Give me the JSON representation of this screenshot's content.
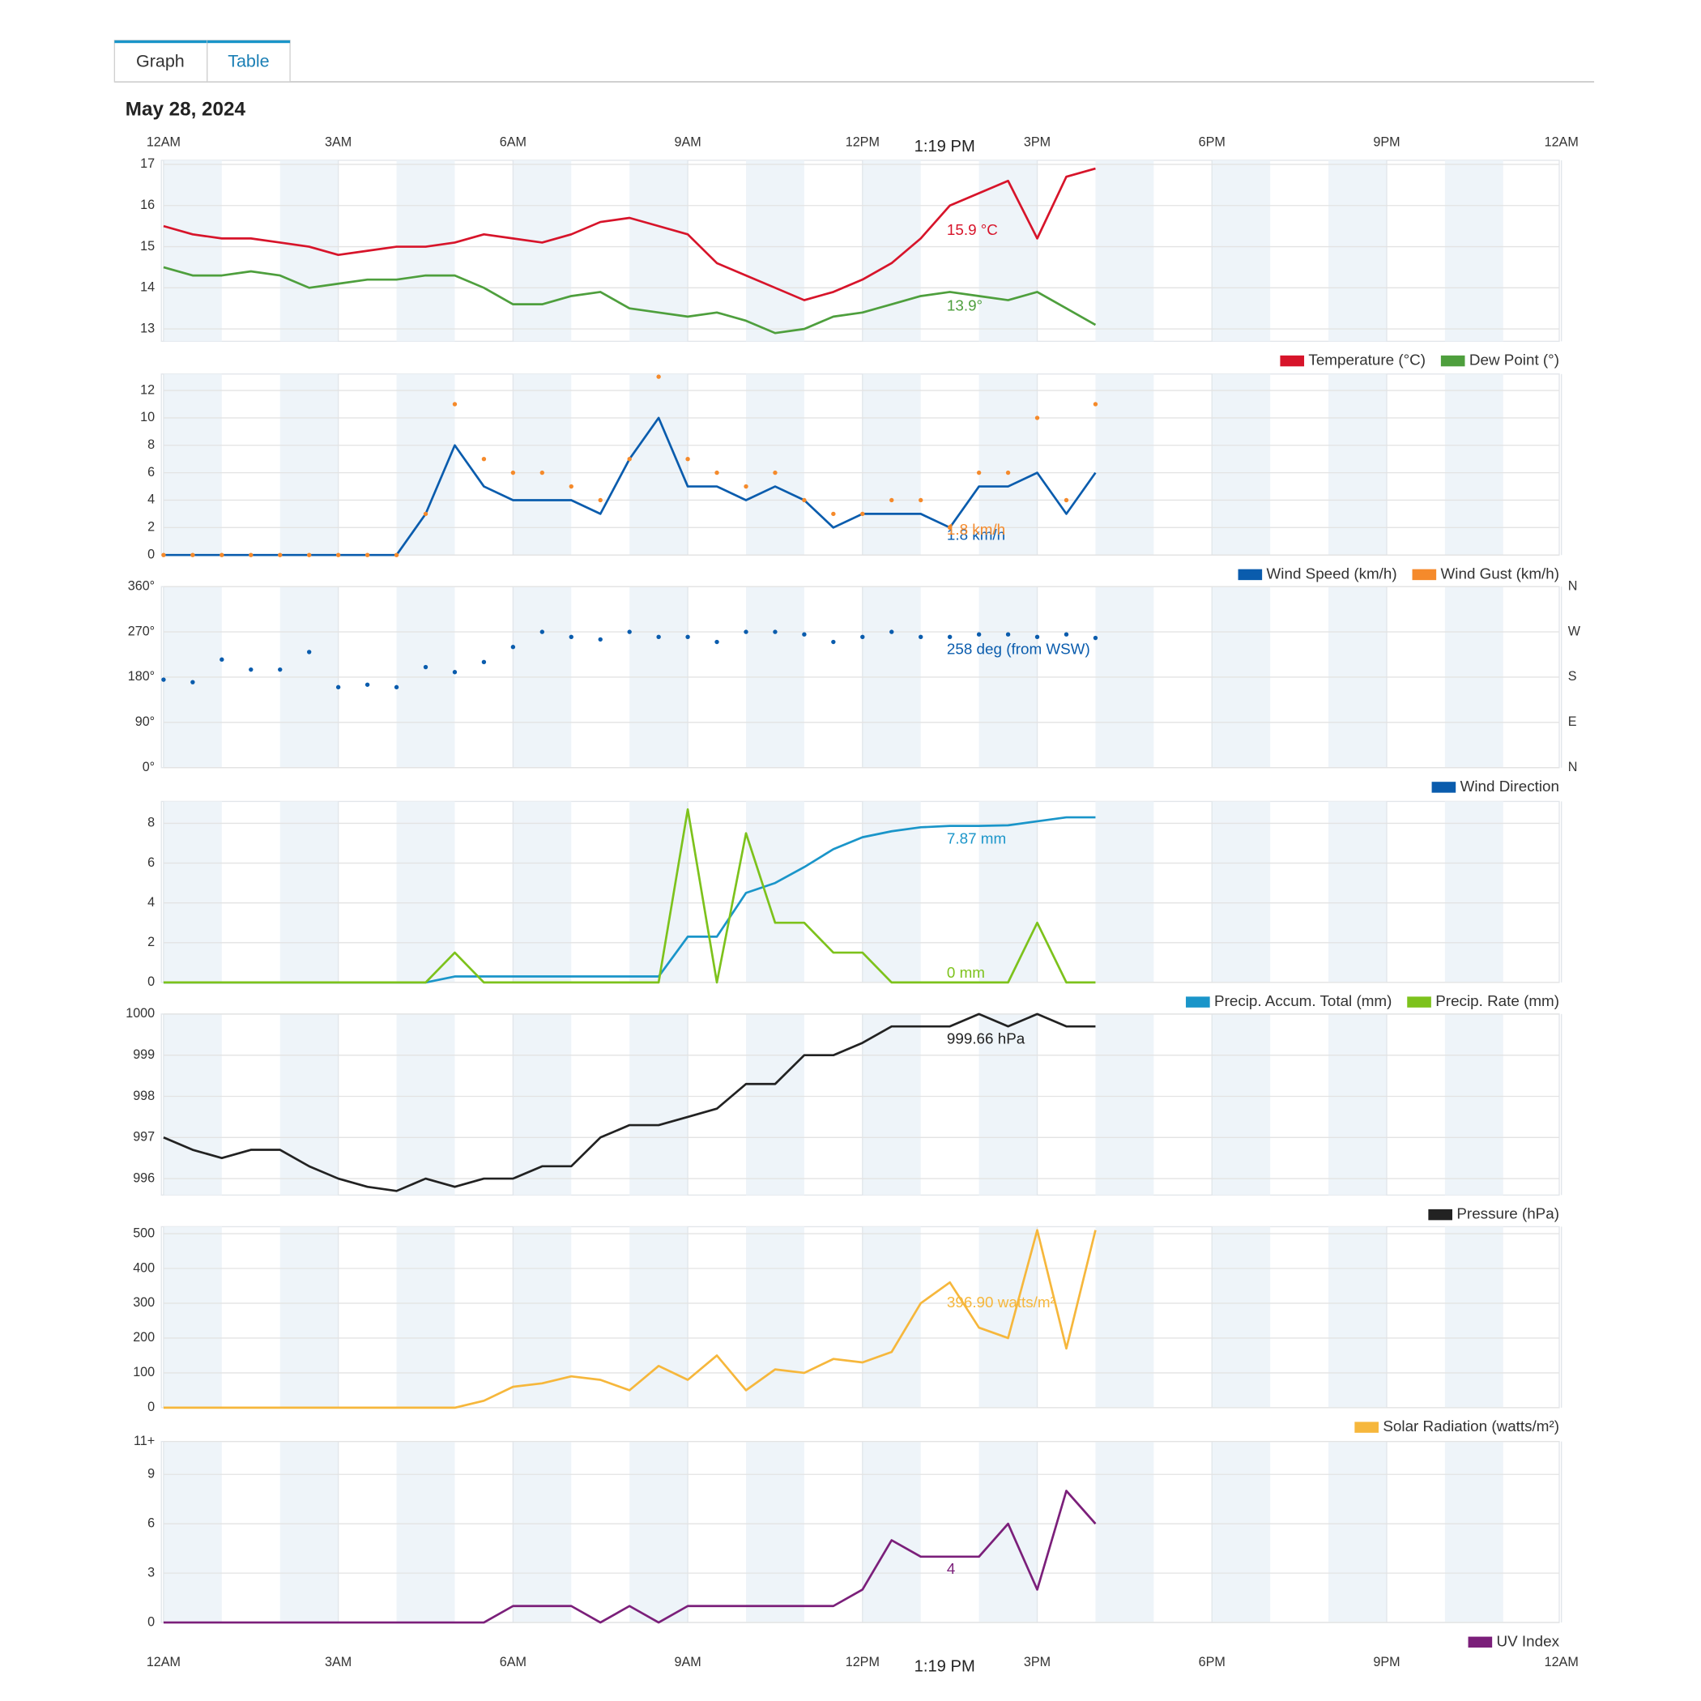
{
  "tabs": [
    "Graph",
    "Table"
  ],
  "date": "May 28, 2024",
  "cursor": {
    "x": 13.3167,
    "label": "1:19 PM"
  },
  "time_axis": {
    "xlim": [
      0,
      24
    ],
    "xticks": [
      {
        "value": 0,
        "label": "12AM"
      },
      {
        "value": 3,
        "label": "3AM"
      },
      {
        "value": 6,
        "label": "6AM"
      },
      {
        "value": 9,
        "label": "9AM"
      },
      {
        "value": 12,
        "label": "12PM"
      },
      {
        "value": 15,
        "label": "3PM"
      },
      {
        "value": 18,
        "label": "6PM"
      },
      {
        "value": 21,
        "label": "9PM"
      },
      {
        "value": 24,
        "label": "12AM"
      }
    ]
  },
  "chart_data": [
    {
      "type": "line",
      "xlim": [
        0,
        24
      ],
      "ylim": [
        12.7,
        17.1
      ],
      "yticks": [
        13,
        14,
        15,
        16,
        17
      ],
      "grid": true,
      "x": [
        0,
        0.5,
        1,
        1.5,
        2,
        2.5,
        3,
        3.5,
        4,
        4.5,
        5,
        5.5,
        6,
        6.5,
        7,
        7.5,
        8,
        8.5,
        9,
        9.5,
        10,
        10.5,
        11,
        11.5,
        12,
        12.5,
        13,
        13.5,
        14,
        14.5,
        15,
        15.5,
        16
      ],
      "series": [
        {
          "name": "Temperature (°C)",
          "color": "#d7142a",
          "hover_label": "15.9 °C",
          "values": [
            15.5,
            15.3,
            15.2,
            15.2,
            15.1,
            15.0,
            14.8,
            14.9,
            15.0,
            15.0,
            15.1,
            15.3,
            15.2,
            15.1,
            15.3,
            15.6,
            15.7,
            15.5,
            15.3,
            14.6,
            14.3,
            14.0,
            13.7,
            13.9,
            14.2,
            14.6,
            15.2,
            16.0,
            16.3,
            16.6,
            15.2,
            16.7,
            16.9
          ]
        },
        {
          "name": "Dew Point (°)",
          "color": "#4e9f3d",
          "hover_label": "13.9°",
          "values": [
            14.5,
            14.3,
            14.3,
            14.4,
            14.3,
            14.0,
            14.1,
            14.2,
            14.2,
            14.3,
            14.3,
            14.0,
            13.6,
            13.6,
            13.8,
            13.9,
            13.5,
            13.4,
            13.3,
            13.4,
            13.2,
            12.9,
            13.0,
            13.3,
            13.4,
            13.6,
            13.8,
            13.9,
            13.8,
            13.7,
            13.9,
            13.5,
            13.1
          ]
        }
      ]
    },
    {
      "type": "line",
      "xlim": [
        0,
        24
      ],
      "ylim": [
        0,
        13.2
      ],
      "yticks": [
        0,
        2,
        4,
        6,
        8,
        10,
        12
      ],
      "grid": true,
      "x": [
        0,
        0.5,
        1,
        1.5,
        2,
        2.5,
        3,
        3.5,
        4,
        4.5,
        5,
        5.5,
        6,
        6.5,
        7,
        7.5,
        8,
        8.5,
        9,
        9.5,
        10,
        10.5,
        11,
        11.5,
        12,
        12.5,
        13,
        13.5,
        14,
        14.5,
        15,
        15.5,
        16
      ],
      "series": [
        {
          "name": "Wind Speed (km/h)",
          "color": "#0a5cad",
          "hover_label": "1.8 km/h",
          "values": [
            0,
            0,
            0,
            0,
            0,
            0,
            0,
            0,
            0,
            3,
            8,
            5,
            4,
            4,
            4,
            3,
            7,
            10,
            5,
            5,
            4,
            5,
            4,
            2,
            3,
            3,
            3,
            2,
            5,
            5,
            6,
            3,
            6
          ]
        },
        {
          "name": "Wind Gust (km/h)",
          "color": "#f58a2b",
          "style": "dots",
          "hover_label": "1.8 km/h",
          "values": [
            0,
            0,
            0,
            0,
            0,
            0,
            0,
            0,
            0,
            3,
            11,
            7,
            6,
            6,
            5,
            4,
            7,
            13,
            7,
            6,
            5,
            6,
            4,
            3,
            3,
            4,
            4,
            2,
            6,
            6,
            10,
            4,
            11
          ]
        }
      ]
    },
    {
      "type": "scatter",
      "xlim": [
        0,
        24
      ],
      "ylim": [
        0,
        360
      ],
      "yticks": [
        {
          "value": 0,
          "label": "0°"
        },
        {
          "value": 90,
          "label": "90°"
        },
        {
          "value": 180,
          "label": "180°"
        },
        {
          "value": 270,
          "label": "270°"
        },
        {
          "value": 360,
          "label": "360°"
        }
      ],
      "grid": true,
      "y2lim": [
        0,
        360
      ],
      "y2ticks": [
        {
          "value": 0,
          "label": "N"
        },
        {
          "value": 90,
          "label": "E"
        },
        {
          "value": 180,
          "label": "S"
        },
        {
          "value": 270,
          "label": "W"
        },
        {
          "value": 360,
          "label": "N"
        }
      ],
      "x": [
        0,
        0.5,
        1,
        1.5,
        2,
        2.5,
        3,
        3.5,
        4,
        4.5,
        5,
        5.5,
        6,
        6.5,
        7,
        7.5,
        8,
        8.5,
        9,
        9.5,
        10,
        10.5,
        11,
        11.5,
        12,
        12.5,
        13,
        13.5,
        14,
        14.5,
        15,
        15.5,
        16
      ],
      "series": [
        {
          "name": "Wind Direction",
          "color": "#0a5cad",
          "hover_label": "258 deg (from WSW)",
          "values": [
            175,
            170,
            215,
            195,
            195,
            230,
            160,
            165,
            160,
            200,
            190,
            210,
            240,
            270,
            260,
            255,
            270,
            260,
            260,
            250,
            270,
            270,
            265,
            250,
            260,
            270,
            260,
            260,
            265,
            265,
            260,
            265,
            258
          ]
        }
      ]
    },
    {
      "type": "line",
      "xlim": [
        0,
        24
      ],
      "ylim": [
        0,
        9.1
      ],
      "yticks": [
        0,
        2,
        4,
        6,
        8
      ],
      "grid": true,
      "x": [
        0,
        0.5,
        1,
        1.5,
        2,
        2.5,
        3,
        3.5,
        4,
        4.5,
        5,
        5.5,
        6,
        6.5,
        7,
        7.5,
        8,
        8.5,
        9,
        9.5,
        10,
        10.5,
        11,
        11.5,
        12,
        12.5,
        13,
        13.5,
        14,
        14.5,
        15,
        15.5,
        16
      ],
      "series": [
        {
          "name": "Precip. Accum. Total (mm)",
          "color": "#1a95c9",
          "hover_label": "7.87 mm",
          "values": [
            0,
            0,
            0,
            0,
            0,
            0,
            0,
            0,
            0,
            0,
            0.3,
            0.3,
            0.3,
            0.3,
            0.3,
            0.3,
            0.3,
            0.3,
            2.3,
            2.3,
            4.5,
            5.0,
            5.8,
            6.7,
            7.3,
            7.6,
            7.8,
            7.87,
            7.87,
            7.9,
            8.1,
            8.3,
            8.3
          ]
        },
        {
          "name": "Precip. Rate (mm)",
          "color": "#7dc21c",
          "hover_label": "0 mm",
          "values": [
            0,
            0,
            0,
            0,
            0,
            0,
            0,
            0,
            0,
            0,
            1.5,
            0,
            0,
            0,
            0,
            0,
            0,
            0,
            8.7,
            0,
            7.5,
            3,
            3,
            1.5,
            1.5,
            0,
            0,
            0,
            0,
            0,
            3,
            0,
            0
          ]
        }
      ]
    },
    {
      "type": "line",
      "xlim": [
        0,
        24
      ],
      "ylim": [
        995.6,
        1000
      ],
      "yticks": [
        996,
        997,
        998,
        999,
        1000
      ],
      "grid": true,
      "x": [
        0,
        0.5,
        1,
        1.5,
        2,
        2.5,
        3,
        3.5,
        4,
        4.5,
        5,
        5.5,
        6,
        6.5,
        7,
        7.5,
        8,
        8.5,
        9,
        9.5,
        10,
        10.5,
        11,
        11.5,
        12,
        12.5,
        13,
        13.5,
        14,
        14.5,
        15,
        15.5,
        16
      ],
      "series": [
        {
          "name": "Pressure (hPa)",
          "color": "#222222",
          "hover_label": "999.66 hPa",
          "values": [
            997.0,
            996.7,
            996.5,
            996.7,
            996.7,
            996.3,
            996.0,
            995.8,
            995.7,
            996.0,
            995.8,
            996.0,
            996.0,
            996.3,
            996.3,
            997.0,
            997.3,
            997.3,
            997.5,
            997.7,
            998.3,
            998.3,
            999.0,
            999.0,
            999.3,
            999.7,
            999.7,
            999.7,
            1000.0,
            999.7,
            1000.0,
            999.7,
            999.7
          ]
        }
      ]
    },
    {
      "type": "line",
      "xlim": [
        0,
        24
      ],
      "ylim": [
        0,
        520
      ],
      "yticks": [
        0,
        100,
        200,
        300,
        400,
        500
      ],
      "grid": true,
      "x": [
        0,
        0.5,
        1,
        1.5,
        2,
        2.5,
        3,
        3.5,
        4,
        4.5,
        5,
        5.5,
        6,
        6.5,
        7,
        7.5,
        8,
        8.5,
        9,
        9.5,
        10,
        10.5,
        11,
        11.5,
        12,
        12.5,
        13,
        13.5,
        14,
        14.5,
        15,
        15.5,
        16
      ],
      "series": [
        {
          "name": "Solar Radiation (watts/m²)",
          "color": "#f6b73c",
          "hover_label": "396.90 watts/m²",
          "values": [
            0,
            0,
            0,
            0,
            0,
            0,
            0,
            0,
            0,
            0,
            0,
            20,
            60,
            70,
            90,
            80,
            50,
            120,
            80,
            150,
            50,
            110,
            100,
            140,
            130,
            160,
            300,
            360,
            230,
            200,
            510,
            170,
            510
          ]
        }
      ]
    },
    {
      "type": "line",
      "xlim": [
        0,
        24
      ],
      "ylim": [
        0,
        11
      ],
      "yticks": [
        0,
        3,
        6,
        9,
        {
          "value": 11,
          "label": "11+"
        }
      ],
      "grid": true,
      "x": [
        0,
        0.5,
        1,
        1.5,
        2,
        2.5,
        3,
        3.5,
        4,
        4.5,
        5,
        5.5,
        6,
        6.5,
        7,
        7.5,
        8,
        8.5,
        9,
        9.5,
        10,
        10.5,
        11,
        11.5,
        12,
        12.5,
        13,
        13.5,
        14,
        14.5,
        15,
        15.5,
        16
      ],
      "series": [
        {
          "name": "UV Index",
          "color": "#7b1f7a",
          "hover_label": "4",
          "values": [
            0,
            0,
            0,
            0,
            0,
            0,
            0,
            0,
            0,
            0,
            0,
            0,
            1,
            1,
            1,
            0,
            1,
            0,
            1,
            1,
            1,
            1,
            1,
            1,
            2,
            5,
            4,
            4,
            4,
            6,
            2,
            8,
            6
          ]
        }
      ]
    }
  ]
}
